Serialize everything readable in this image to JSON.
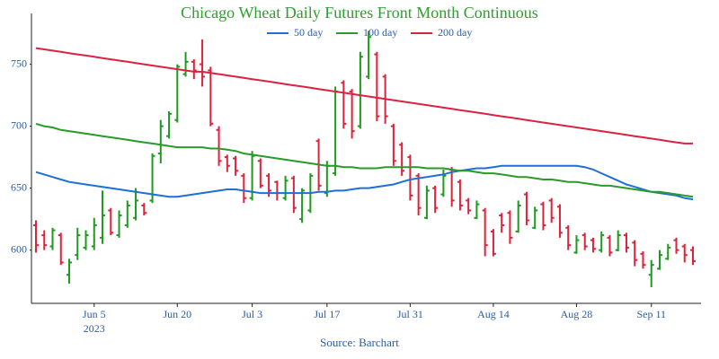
{
  "chart_data": {
    "type": "ohlc",
    "title": "Chicago Wheat Daily Futures Front Month Continuous",
    "source": "Source: Barchart",
    "x": [
      "2023-05-24",
      "2023-05-25",
      "2023-05-26",
      "2023-05-30",
      "2023-05-31",
      "2023-06-01",
      "2023-06-02",
      "2023-06-05",
      "2023-06-06",
      "2023-06-07",
      "2023-06-08",
      "2023-06-09",
      "2023-06-12",
      "2023-06-13",
      "2023-06-14",
      "2023-06-15",
      "2023-06-16",
      "2023-06-20",
      "2023-06-21",
      "2023-06-22",
      "2023-06-23",
      "2023-06-26",
      "2023-06-27",
      "2023-06-28",
      "2023-06-29",
      "2023-06-30",
      "2023-07-03",
      "2023-07-05",
      "2023-07-06",
      "2023-07-07",
      "2023-07-10",
      "2023-07-11",
      "2023-07-12",
      "2023-07-13",
      "2023-07-14",
      "2023-07-17",
      "2023-07-18",
      "2023-07-19",
      "2023-07-20",
      "2023-07-21",
      "2023-07-24",
      "2023-07-25",
      "2023-07-26",
      "2023-07-27",
      "2023-07-28",
      "2023-07-31",
      "2023-08-01",
      "2023-08-02",
      "2023-08-03",
      "2023-08-04",
      "2023-08-07",
      "2023-08-08",
      "2023-08-09",
      "2023-08-10",
      "2023-08-11",
      "2023-08-14",
      "2023-08-15",
      "2023-08-16",
      "2023-08-17",
      "2023-08-18",
      "2023-08-21",
      "2023-08-22",
      "2023-08-23",
      "2023-08-24",
      "2023-08-25",
      "2023-08-28",
      "2023-08-29",
      "2023-08-30",
      "2023-08-31",
      "2023-09-01",
      "2023-09-05",
      "2023-09-06",
      "2023-09-07",
      "2023-09-08",
      "2023-09-11",
      "2023-09-12",
      "2023-09-13",
      "2023-09-14",
      "2023-09-15",
      "2023-09-18"
    ],
    "open": [
      620,
      612,
      603,
      612,
      580,
      596,
      602,
      603,
      610,
      632,
      612,
      620,
      626,
      636,
      640,
      678,
      692,
      705,
      742,
      752,
      750,
      745,
      697,
      675,
      674,
      660,
      642,
      672,
      660,
      655,
      642,
      658,
      625,
      632,
      688,
      646,
      662,
      735,
      728,
      700,
      740,
      758,
      740,
      700,
      685,
      675,
      660,
      626,
      650,
      645,
      665,
      655,
      640,
      626,
      632,
      615,
      628,
      630,
      615,
      645,
      618,
      637,
      640,
      635,
      618,
      598,
      612,
      608,
      600,
      610,
      600,
      612,
      606,
      597,
      580,
      585,
      593,
      608,
      603,
      600
    ],
    "high": [
      624,
      616,
      618,
      614,
      593,
      618,
      616,
      626,
      648,
      634,
      632,
      640,
      650,
      638,
      678,
      705,
      712,
      750,
      760,
      754,
      770,
      748,
      700,
      677,
      676,
      662,
      680,
      674,
      662,
      656,
      660,
      660,
      650,
      662,
      690,
      672,
      732,
      737,
      730,
      760,
      777,
      760,
      742,
      702,
      687,
      677,
      662,
      652,
      652,
      665,
      667,
      657,
      642,
      640,
      634,
      617,
      630,
      632,
      640,
      647,
      635,
      639,
      642,
      637,
      620,
      612,
      614,
      610,
      615,
      612,
      616,
      614,
      608,
      599,
      592,
      600,
      605,
      610,
      605,
      603
    ],
    "low": [
      598,
      600,
      600,
      588,
      573,
      592,
      600,
      600,
      605,
      612,
      610,
      618,
      624,
      628,
      638,
      670,
      690,
      703,
      740,
      738,
      732,
      700,
      668,
      663,
      660,
      638,
      640,
      650,
      643,
      640,
      640,
      630,
      622,
      630,
      648,
      643,
      660,
      698,
      690,
      698,
      738,
      704,
      702,
      668,
      660,
      640,
      628,
      625,
      630,
      643,
      635,
      632,
      629,
      625,
      595,
      595,
      614,
      605,
      614,
      620,
      617,
      616,
      622,
      610,
      600,
      597,
      600,
      598,
      598,
      595,
      599,
      598,
      587,
      585,
      570,
      584,
      592,
      597,
      590,
      588
    ],
    "close": [
      604,
      604,
      616,
      590,
      590,
      612,
      612,
      620,
      628,
      614,
      628,
      636,
      640,
      630,
      676,
      700,
      710,
      748,
      752,
      745,
      740,
      702,
      672,
      668,
      664,
      642,
      676,
      652,
      648,
      646,
      656,
      634,
      648,
      660,
      652,
      668,
      728,
      702,
      696,
      756,
      772,
      708,
      708,
      672,
      664,
      644,
      634,
      648,
      634,
      660,
      640,
      636,
      632,
      637,
      604,
      597,
      620,
      610,
      636,
      624,
      632,
      620,
      626,
      614,
      604,
      608,
      603,
      601,
      612,
      598,
      612,
      602,
      592,
      588,
      588,
      596,
      602,
      600,
      596,
      591
    ],
    "up_color": "#1e9a1e",
    "down_color": "#e0213a",
    "series": [
      {
        "name": "50 day",
        "color": "#1f6fd6",
        "values": [
          663,
          661,
          659,
          657,
          655,
          654,
          653,
          652,
          651,
          650,
          649,
          648,
          647,
          646,
          645,
          644,
          643,
          643,
          644,
          645,
          646,
          647,
          648,
          649,
          649,
          648,
          647,
          646,
          646,
          646,
          646,
          646,
          646,
          646,
          647,
          647,
          648,
          648,
          649,
          650,
          650,
          651,
          652,
          653,
          655,
          657,
          658,
          659,
          660,
          661,
          663,
          664,
          665,
          666,
          666,
          667,
          668,
          668,
          668,
          668,
          668,
          668,
          668,
          668,
          668,
          668,
          667,
          665,
          662,
          659,
          656,
          653,
          651,
          649,
          647,
          646,
          645,
          644,
          642,
          641
        ]
      },
      {
        "name": "100 day",
        "color": "#2a9a2a",
        "values": [
          702,
          700,
          699,
          697,
          696,
          695,
          694,
          693,
          692,
          691,
          690,
          689,
          688,
          687,
          686,
          685,
          684,
          683,
          683,
          683,
          683,
          682,
          682,
          681,
          680,
          678,
          677,
          676,
          675,
          674,
          673,
          672,
          671,
          670,
          669,
          668,
          668,
          667,
          667,
          666,
          666,
          666,
          667,
          667,
          667,
          667,
          667,
          666,
          666,
          666,
          665,
          664,
          664,
          663,
          662,
          662,
          661,
          660,
          659,
          659,
          658,
          657,
          657,
          656,
          655,
          655,
          654,
          653,
          652,
          652,
          651,
          650,
          649,
          648,
          647,
          647,
          646,
          645,
          644,
          643
        ]
      },
      {
        "name": "200 day",
        "color": "#d82442",
        "values": [
          763,
          762,
          761,
          760,
          759,
          758,
          757,
          756,
          755,
          754,
          753,
          752,
          751,
          750,
          749,
          748,
          747,
          746,
          745,
          744,
          744,
          743,
          742,
          741,
          740,
          739,
          738,
          737,
          736,
          735,
          734,
          733,
          732,
          731,
          730,
          729,
          728,
          727,
          726,
          725,
          724,
          723,
          722,
          721,
          720,
          719,
          718,
          717,
          716,
          715,
          714,
          713,
          712,
          711,
          710,
          709,
          708,
          707,
          706,
          705,
          704,
          703,
          702,
          701,
          700,
          699,
          698,
          697,
          696,
          695,
          694,
          693,
          692,
          691,
          690,
          689,
          688,
          687,
          686,
          686
        ]
      }
    ],
    "ylim": [
      557,
      791
    ],
    "yticks": [
      600,
      650,
      700,
      750
    ],
    "xticks": [
      {
        "value": "2023-06-05",
        "label": "Jun 5"
      },
      {
        "value": "2023-06-20",
        "label": "Jun 20"
      },
      {
        "value": "2023-07-03",
        "label": "Jul 3"
      },
      {
        "value": "2023-07-17",
        "label": "Jul 17"
      },
      {
        "value": "2023-07-31",
        "label": "Jul 31"
      },
      {
        "value": "2023-08-14",
        "label": "Aug 14"
      },
      {
        "value": "2023-08-28",
        "label": "Aug 28"
      },
      {
        "value": "2023-09-11",
        "label": "Sep 11"
      }
    ],
    "xtick_year": "2023",
    "grid": false,
    "legend": "top"
  }
}
